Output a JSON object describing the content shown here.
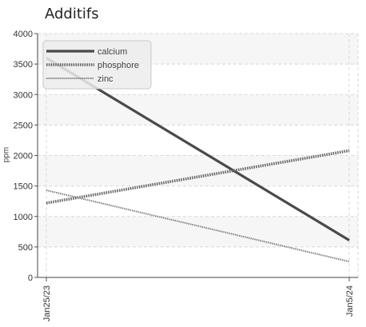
{
  "chart_data": {
    "type": "line",
    "title": "Additifs",
    "ylabel": "ppm",
    "xlabel": "",
    "x": [
      "Jan25/23",
      "Jan5/24"
    ],
    "ylim": [
      0,
      4000
    ],
    "yticks": [
      0,
      500,
      1000,
      1500,
      2000,
      2500,
      3000,
      3500,
      4000
    ],
    "grid": true,
    "legend_position": "top-left",
    "series": [
      {
        "name": "calcium",
        "values": [
          3600,
          610
        ],
        "color": "#4a4a4a",
        "style": "solid"
      },
      {
        "name": "phosphore",
        "values": [
          1220,
          2080
        ],
        "color": "#6a6a6a",
        "style": "dotted-thick"
      },
      {
        "name": "zinc",
        "values": [
          1430,
          260
        ],
        "color": "#7a7a7a",
        "style": "dotted-thin"
      }
    ]
  }
}
